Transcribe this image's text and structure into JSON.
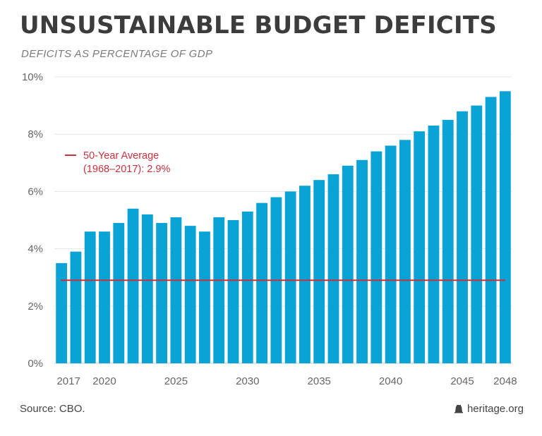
{
  "header": {
    "title": "UNSUSTAINABLE BUDGET DEFICITS",
    "subtitle": "DEFICITS AS PERCENTAGE OF GDP"
  },
  "footer": {
    "source": "Source: CBO.",
    "brand": "heritage.org"
  },
  "colors": {
    "bar": "#0aa3d6",
    "average_line": "#c8323c",
    "grid": "#e6e6e6",
    "axis_text": "#666666"
  },
  "chart_data": {
    "type": "bar",
    "x": [
      2017,
      2018,
      2019,
      2020,
      2021,
      2022,
      2023,
      2024,
      2025,
      2026,
      2027,
      2028,
      2029,
      2030,
      2031,
      2032,
      2033,
      2034,
      2035,
      2036,
      2037,
      2038,
      2039,
      2040,
      2041,
      2042,
      2043,
      2044,
      2045,
      2046,
      2047,
      2048
    ],
    "values": [
      3.5,
      3.9,
      4.6,
      4.6,
      4.9,
      5.4,
      5.2,
      4.9,
      5.1,
      4.8,
      4.6,
      5.1,
      5.0,
      5.3,
      5.6,
      5.8,
      6.0,
      6.2,
      6.4,
      6.6,
      6.9,
      7.1,
      7.4,
      7.6,
      7.8,
      8.1,
      8.3,
      8.5,
      8.8,
      9.0,
      9.3,
      9.5
    ],
    "x_tick_labels": [
      "2017",
      "2020",
      "2025",
      "2030",
      "2035",
      "2040",
      "2045",
      "2048"
    ],
    "x_tick_values": [
      2017,
      2020,
      2025,
      2030,
      2035,
      2040,
      2045,
      2048
    ],
    "y_tick_labels": [
      "0%",
      "2%",
      "4%",
      "6%",
      "8%",
      "10%"
    ],
    "y_tick_values": [
      0,
      2,
      4,
      6,
      8,
      10
    ],
    "ylim": [
      0,
      10
    ],
    "grid": true,
    "average": {
      "value": 2.9,
      "label_line1": "50-Year Average",
      "label_line2": "(1968–2017): 2.9%"
    }
  }
}
